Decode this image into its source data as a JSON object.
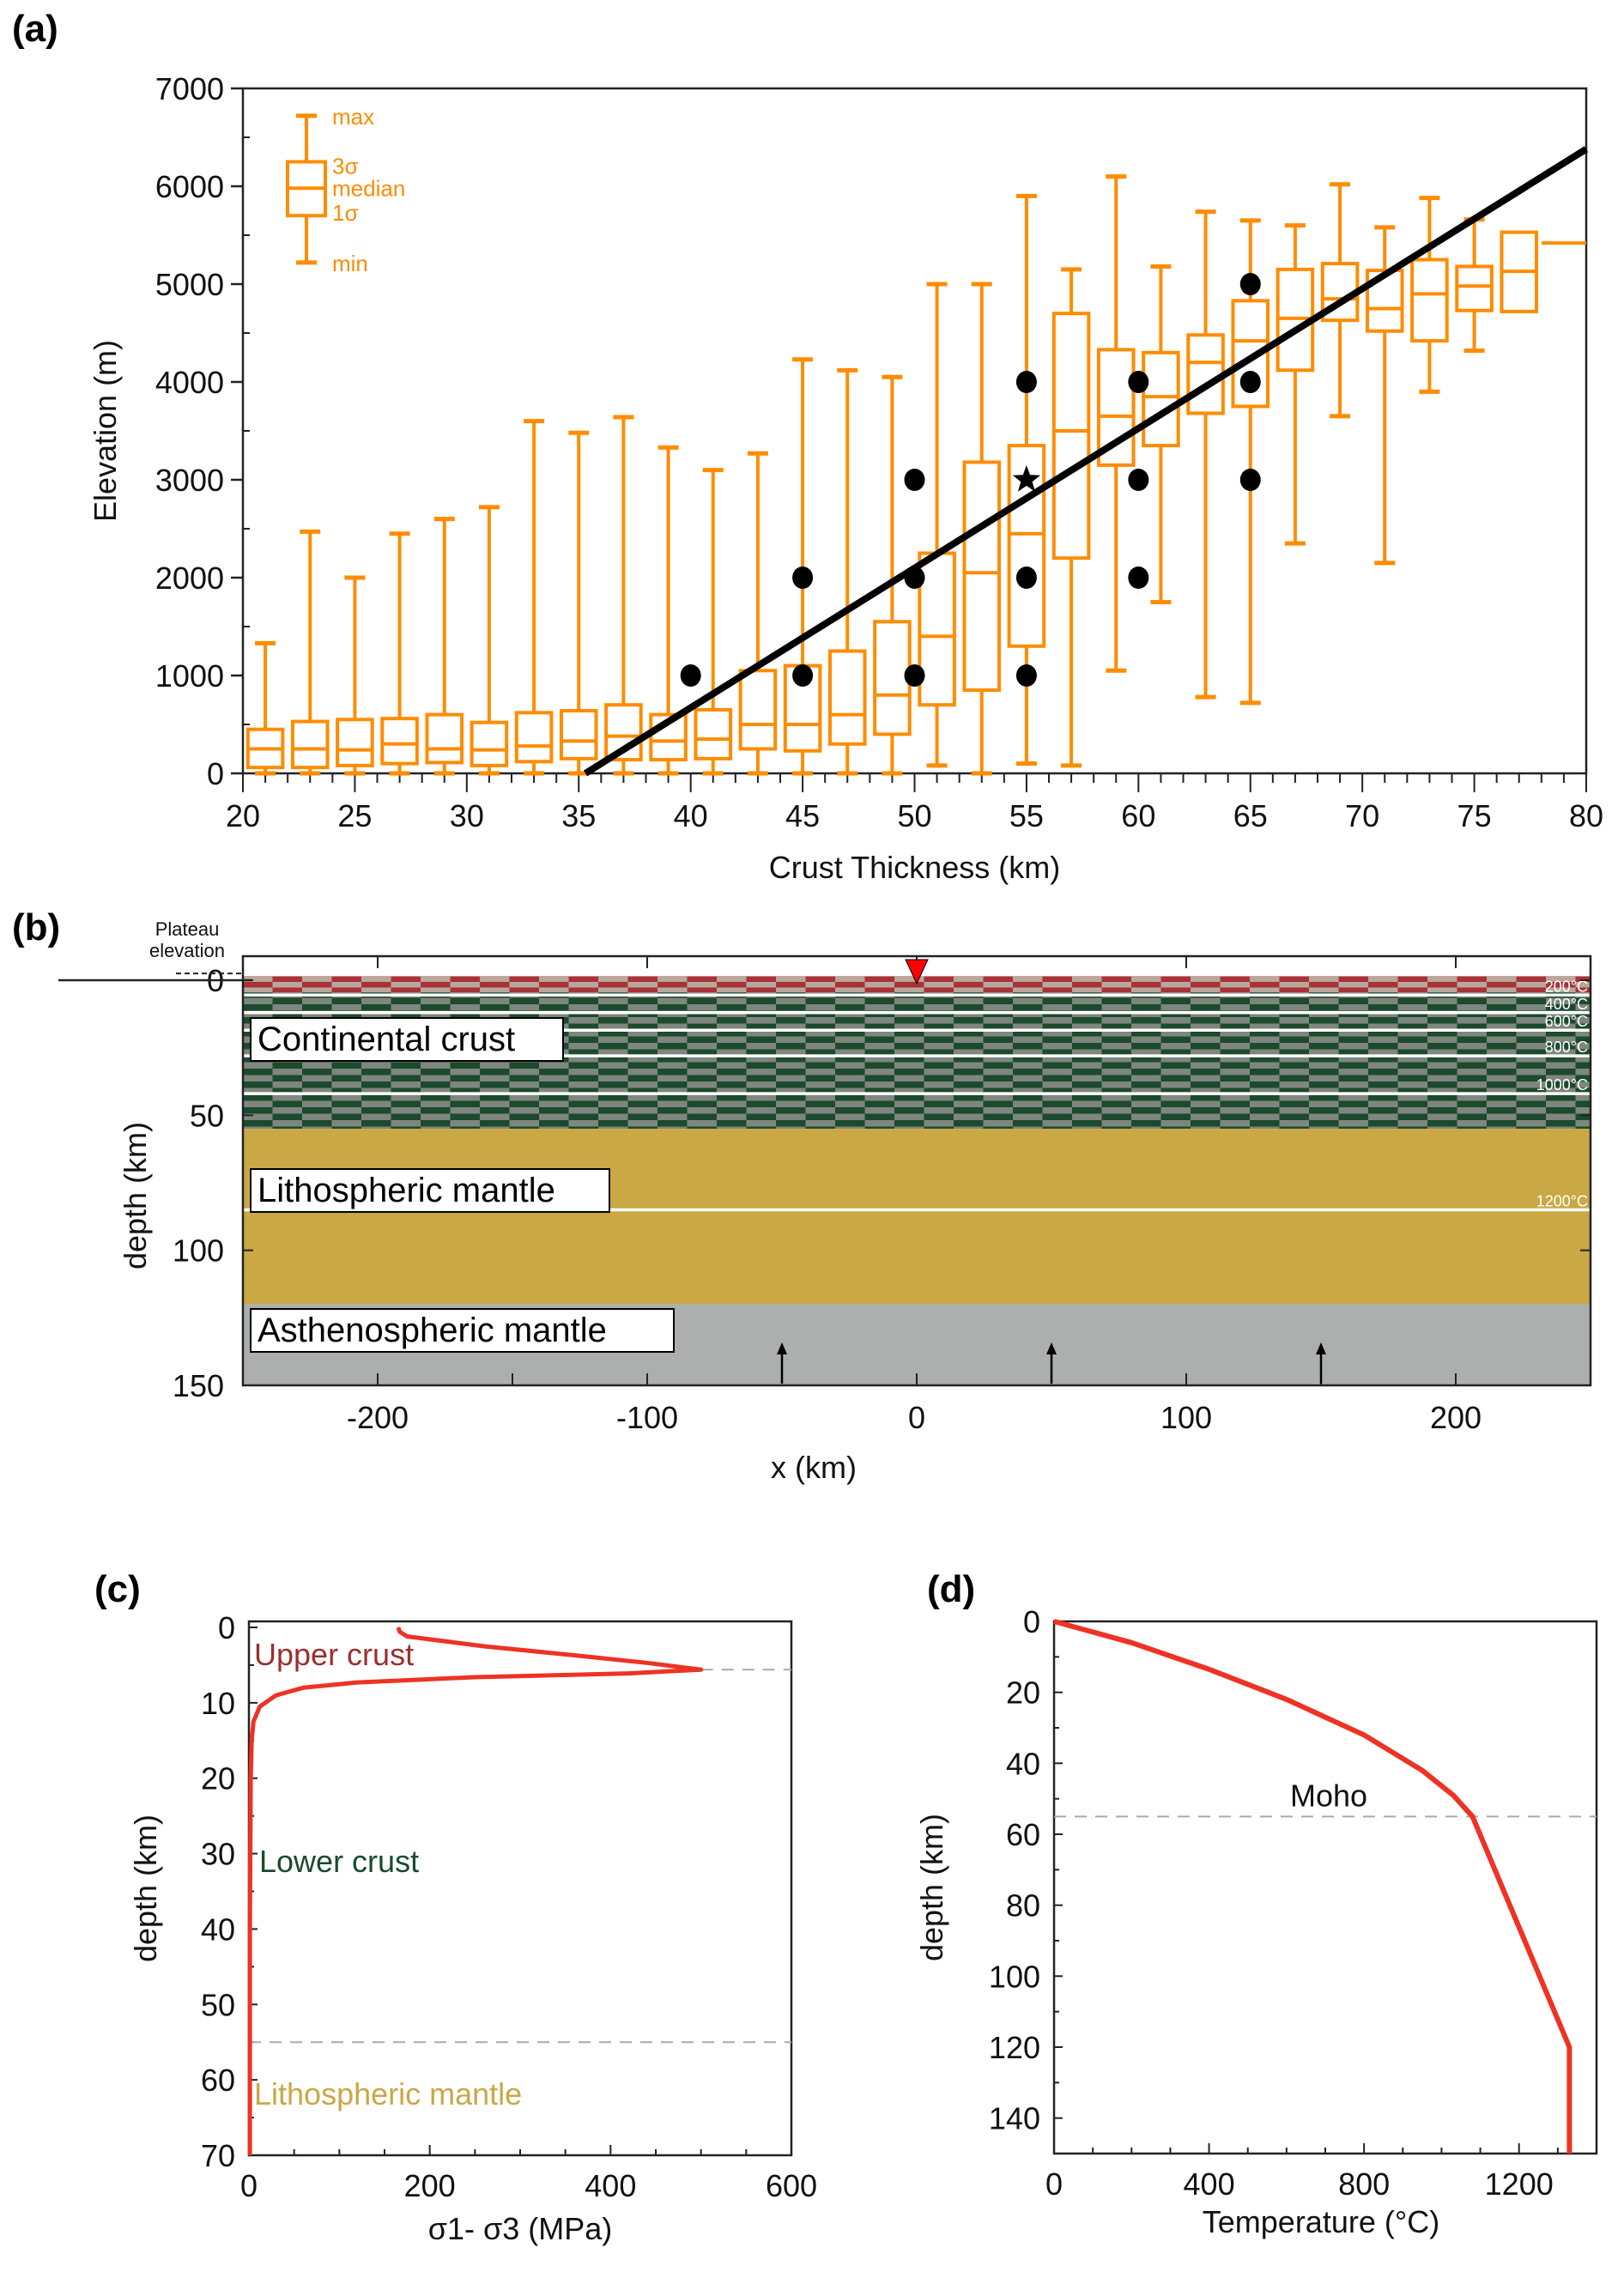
{
  "panels": {
    "a": "(a)",
    "b": "(b)",
    "c": "(c)",
    "d": "(d)"
  },
  "colors": {
    "box": "#ff8c00",
    "fit_line": "#000000",
    "upper_crust": "#a83238",
    "upper_crust_alt": "#b9a79a",
    "lower_crust": "#1b4a2d",
    "lower_crust_alt": "#7f857f",
    "lithospheric_mantle": "#c9a845",
    "asthenosphere": "#adaeae",
    "profile_line": "#ee3224",
    "moho_dash": "#aaaaaa",
    "upper_crust_text": "#9a2f2f",
    "lower_crust_text": "#1b4a2d",
    "litho_text": "#c9a845"
  },
  "chart_data": [
    {
      "id": "a",
      "type": "box",
      "title": "",
      "xlabel": "Crust Thickness (km)",
      "ylabel": "Elevation (m)",
      "xlim": [
        20,
        80
      ],
      "ylim": [
        0,
        7000
      ],
      "xticks": [
        20,
        25,
        30,
        35,
        40,
        45,
        50,
        55,
        60,
        65,
        70,
        75,
        80
      ],
      "yticks": [
        0,
        1000,
        2000,
        3000,
        4000,
        5000,
        6000,
        7000
      ],
      "legend": {
        "position": "top-left",
        "labels": [
          "max",
          "3σ",
          "median",
          "1σ",
          "min"
        ],
        "example": {
          "min": 5220,
          "q1": 5700,
          "median": 5980,
          "q3": 6250,
          "max": 6720
        }
      },
      "boxes": [
        {
          "x": 21,
          "min": 0,
          "q1": 60,
          "median": 250,
          "q3": 450,
          "max": 1330
        },
        {
          "x": 23,
          "min": 0,
          "q1": 60,
          "median": 250,
          "q3": 530,
          "max": 2470
        },
        {
          "x": 25,
          "min": 0,
          "q1": 80,
          "median": 240,
          "q3": 550,
          "max": 2000
        },
        {
          "x": 27,
          "min": 0,
          "q1": 100,
          "median": 300,
          "q3": 560,
          "max": 2450
        },
        {
          "x": 29,
          "min": 0,
          "q1": 110,
          "median": 250,
          "q3": 600,
          "max": 2600
        },
        {
          "x": 31,
          "min": 0,
          "q1": 80,
          "median": 240,
          "q3": 520,
          "max": 2720
        },
        {
          "x": 33,
          "min": 0,
          "q1": 120,
          "median": 280,
          "q3": 620,
          "max": 3600
        },
        {
          "x": 35,
          "min": 0,
          "q1": 150,
          "median": 330,
          "q3": 640,
          "max": 3480
        },
        {
          "x": 37,
          "min": 0,
          "q1": 140,
          "median": 380,
          "q3": 700,
          "max": 3640
        },
        {
          "x": 39,
          "min": 0,
          "q1": 140,
          "median": 330,
          "q3": 600,
          "max": 3330
        },
        {
          "x": 41,
          "min": 0,
          "q1": 150,
          "median": 350,
          "q3": 650,
          "max": 3100
        },
        {
          "x": 43,
          "min": 0,
          "q1": 250,
          "median": 500,
          "q3": 1050,
          "max": 3270
        },
        {
          "x": 45,
          "min": 0,
          "q1": 230,
          "median": 500,
          "q3": 1100,
          "max": 4230
        },
        {
          "x": 47,
          "min": 0,
          "q1": 300,
          "median": 600,
          "q3": 1250,
          "max": 4120
        },
        {
          "x": 49,
          "min": 0,
          "q1": 400,
          "median": 800,
          "q3": 1550,
          "max": 4050
        },
        {
          "x": 51,
          "min": 80,
          "q1": 700,
          "median": 1400,
          "q3": 2250,
          "max": 5000
        },
        {
          "x": 53,
          "min": 0,
          "q1": 850,
          "median": 2050,
          "q3": 3180,
          "max": 5000
        },
        {
          "x": 55,
          "min": 100,
          "q1": 1300,
          "median": 2450,
          "q3": 3350,
          "max": 5900
        },
        {
          "x": 57,
          "min": 80,
          "q1": 2200,
          "median": 3500,
          "q3": 4700,
          "max": 5150
        },
        {
          "x": 59,
          "min": 1050,
          "q1": 3150,
          "median": 3650,
          "q3": 4330,
          "max": 6100
        },
        {
          "x": 61,
          "min": 1750,
          "q1": 3350,
          "median": 3850,
          "q3": 4300,
          "max": 5180
        },
        {
          "x": 63,
          "min": 780,
          "q1": 3680,
          "median": 4200,
          "q3": 4480,
          "max": 5740
        },
        {
          "x": 65,
          "min": 720,
          "q1": 3750,
          "median": 4420,
          "q3": 4830,
          "max": 5650
        },
        {
          "x": 67,
          "min": 2350,
          "q1": 4120,
          "median": 4650,
          "q3": 5150,
          "max": 5600
        },
        {
          "x": 69,
          "min": 3650,
          "q1": 4630,
          "median": 4850,
          "q3": 5210,
          "max": 6020
        },
        {
          "x": 71,
          "min": 2150,
          "q1": 4520,
          "median": 4750,
          "q3": 5140,
          "max": 5580
        },
        {
          "x": 73,
          "min": 3900,
          "q1": 4420,
          "median": 4900,
          "q3": 5250,
          "max": 5880
        },
        {
          "x": 75,
          "min": 4320,
          "q1": 4730,
          "median": 4980,
          "q3": 5180,
          "max": 5660
        },
        {
          "x": 77,
          "min": 4720,
          "q1": 4720,
          "median": 5130,
          "q3": 5530,
          "max": 5530
        },
        {
          "x": 79,
          "min": 5420,
          "q1": 5420,
          "median": 5420,
          "q3": 5420,
          "max": 5420
        }
      ],
      "points": [
        {
          "x": 40,
          "y": 1000
        },
        {
          "x": 45,
          "y": 1000
        },
        {
          "x": 45,
          "y": 2000
        },
        {
          "x": 50,
          "y": 1000
        },
        {
          "x": 50,
          "y": 2000
        },
        {
          "x": 50,
          "y": 3000
        },
        {
          "x": 55,
          "y": 1000
        },
        {
          "x": 55,
          "y": 2000
        },
        {
          "x": 55,
          "y": 4000
        },
        {
          "x": 60,
          "y": 2000
        },
        {
          "x": 60,
          "y": 3000
        },
        {
          "x": 60,
          "y": 4000
        },
        {
          "x": 65,
          "y": 3000
        },
        {
          "x": 65,
          "y": 4000
        },
        {
          "x": 65,
          "y": 5000
        }
      ],
      "star": {
        "x": 55,
        "y": 3000
      },
      "fit_line": {
        "x": [
          35.3,
          80
        ],
        "y": [
          0,
          6380
        ]
      }
    },
    {
      "id": "b",
      "type": "section",
      "xlabel": "x (km)",
      "ylabel": "depth (km)",
      "xlim": [
        -250,
        250
      ],
      "ylim": [
        150,
        -9
      ],
      "xticks": [
        -200,
        -100,
        0,
        100,
        200
      ],
      "yticks": [
        0,
        50,
        100,
        150
      ],
      "plateau_label": "Plateau elevation",
      "layers": [
        {
          "name": "Continental crust (upper)",
          "top": -1.5,
          "bottom": 4.5
        },
        {
          "name": "Continental crust",
          "top": 4.5,
          "bottom": 55
        },
        {
          "name": "Lithospheric mantle",
          "top": 55,
          "bottom": 120
        },
        {
          "name": "Asthenospheric mantle",
          "top": 120,
          "bottom": 150
        }
      ],
      "layer_labels": [
        "Continental crust",
        "Lithospheric mantle",
        "Asthenospheric mantle"
      ],
      "isotherms": [
        {
          "label": "200°C",
          "depth": 5.5
        },
        {
          "label": "400°C",
          "depth": 12
        },
        {
          "label": "600°C",
          "depth": 18.5
        },
        {
          "label": "800°C",
          "depth": 28
        },
        {
          "label": "1000°C",
          "depth": 42
        },
        {
          "label": "1200°C",
          "depth": 85
        }
      ],
      "marker_x": 0,
      "arrows_x": [
        -50,
        50,
        150
      ]
    },
    {
      "id": "c",
      "type": "line",
      "xlabel": "σ1- σ3 (MPa)",
      "ylabel": "depth (km)",
      "xlim": [
        0,
        600
      ],
      "ylim": [
        70,
        0
      ],
      "xticks": [
        0,
        200,
        400,
        600
      ],
      "yticks": [
        0,
        10,
        20,
        30,
        40,
        50,
        60,
        70
      ],
      "series": [
        {
          "name": "strength",
          "x": [
            165,
            167,
            175,
            260,
            360,
            440,
            500,
            420,
            250,
            120,
            60,
            30,
            12,
            5,
            3,
            2,
            1,
            1
          ],
          "y": [
            0,
            0.6,
            1.2,
            2.5,
            3.7,
            4.7,
            5.6,
            6.1,
            6.6,
            7.3,
            8,
            9,
            10.5,
            12.5,
            15,
            20,
            40,
            70
          ]
        }
      ],
      "dashed_lines_y": [
        5.6,
        55
      ],
      "region_labels": [
        "Upper crust",
        "Lower crust",
        "Lithospheric mantle"
      ]
    },
    {
      "id": "d",
      "type": "line",
      "xlabel": "Temperature (°C)",
      "ylabel": "depth (km)",
      "xlim": [
        0,
        1400
      ],
      "ylim": [
        150,
        0
      ],
      "xticks": [
        0,
        400,
        800,
        1200
      ],
      "yticks": [
        0,
        20,
        40,
        60,
        80,
        100,
        120,
        140
      ],
      "series": [
        {
          "name": "geotherm",
          "x": [
            0,
            200,
            400,
            600,
            800,
            950,
            1030,
            1080,
            1330,
            1330
          ],
          "y": [
            0,
            6,
            13.5,
            22,
            32,
            42,
            49,
            55,
            120,
            150
          ]
        }
      ],
      "dashed_lines_y": [
        55
      ],
      "annotation": "Moho"
    }
  ]
}
